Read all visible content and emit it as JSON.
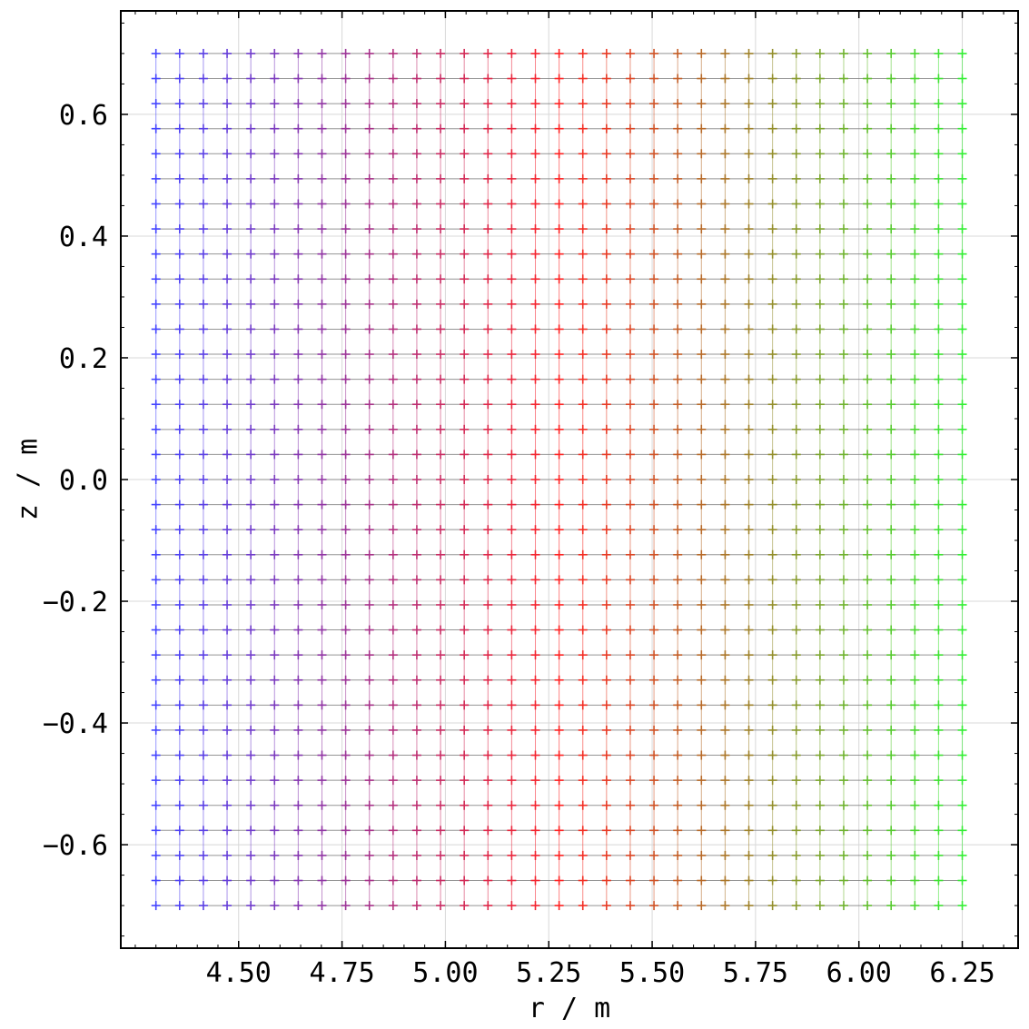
{
  "chart_data": {
    "type": "scatter",
    "title": "",
    "xlabel": "r / m",
    "ylabel": "z / m",
    "xlim": [
      4.215,
      6.385
    ],
    "ylim": [
      -0.77,
      0.77
    ],
    "grid": true,
    "legend": "none",
    "x_ticks": [
      4.5,
      4.75,
      5.0,
      5.25,
      5.5,
      5.75,
      6.0,
      6.25
    ],
    "x_tick_labels": [
      "4.50",
      "4.75",
      "5.00",
      "5.25",
      "5.50",
      "5.75",
      "6.00",
      "6.25"
    ],
    "y_ticks": [
      -0.6,
      -0.4,
      -0.2,
      0.0,
      0.2,
      0.4,
      0.6
    ],
    "y_tick_labels": [
      "−0.6",
      "−0.4",
      "−0.2",
      "0.0",
      "0.2",
      "0.4",
      "0.6"
    ],
    "grid_points": {
      "r_start": 4.3,
      "r_end": 6.25,
      "r_count": 35,
      "z_start": -0.7,
      "z_end": 0.7,
      "z_count": 35,
      "marker": "+",
      "connected_by_lines": true
    },
    "color_gradient": {
      "start": "#4444ff",
      "middle": "#ff2222",
      "end": "#33ee33",
      "direction": "r"
    }
  }
}
